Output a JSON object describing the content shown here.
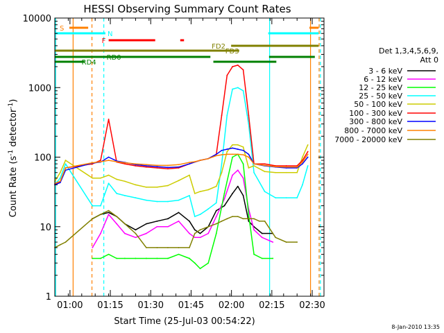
{
  "chart_data": {
    "type": "line",
    "title": "HESSI Observing Summary Count Rates",
    "xlabel": "Start Time (25-Jul-03 00:54:22)",
    "ylabel_main": "Count Rate (s",
    "ylabel_sup1": "-1",
    "ylabel_mid": " detector",
    "ylabel_sup2": "-1",
    "ylabel_end": ")",
    "x_unit": "minutes after 00:54:22",
    "xlim": [
      0,
      100
    ],
    "ylim": [
      1,
      10000
    ],
    "yscale": "log",
    "xticks": [
      {
        "value": 5.63,
        "label": "01:00"
      },
      {
        "value": 20.63,
        "label": "01:15"
      },
      {
        "value": 35.63,
        "label": "01:30"
      },
      {
        "value": 50.63,
        "label": "01:45"
      },
      {
        "value": 65.63,
        "label": "02:00"
      },
      {
        "value": 80.63,
        "label": "02:15"
      },
      {
        "value": 95.63,
        "label": "02:30"
      }
    ],
    "yticks": [
      {
        "value": 1,
        "label": "1"
      },
      {
        "value": 10,
        "label": "10"
      },
      {
        "value": 100,
        "label": "100"
      },
      {
        "value": 1000,
        "label": "1000"
      },
      {
        "value": 10000,
        "label": "10000"
      }
    ],
    "legend": {
      "placement": "right",
      "title_lines": [
        "Det 1,3,4,5,6,9,",
        "Att 0"
      ]
    },
    "series": [
      {
        "name": "3 - 6 keV",
        "color": "#000000",
        "x": [
          14,
          17,
          20,
          23,
          26,
          30,
          34,
          38,
          42,
          46,
          50,
          52,
          54,
          57,
          60,
          63,
          66,
          68,
          70,
          72,
          74,
          77,
          81
        ],
        "y": [
          13,
          15,
          16,
          14,
          11,
          9,
          11,
          12,
          13,
          16,
          12,
          9,
          8,
          10,
          17,
          20,
          30,
          38,
          28,
          12,
          10,
          8,
          8
        ]
      },
      {
        "name": "6 - 12 keV",
        "color": "#ff00ff",
        "x": [
          14,
          17,
          20,
          23,
          26,
          30,
          34,
          38,
          42,
          46,
          50,
          52,
          54,
          57,
          60,
          63,
          66,
          68,
          70,
          72,
          74,
          77,
          81
        ],
        "y": [
          5,
          8,
          15,
          11,
          8,
          7,
          8,
          10,
          10,
          12,
          8,
          7,
          7,
          8,
          14,
          25,
          55,
          65,
          50,
          18,
          9,
          7,
          6
        ]
      },
      {
        "name": "12 - 25 keV",
        "color": "#00ff00",
        "x": [
          14,
          17,
          20,
          23,
          26,
          30,
          34,
          38,
          42,
          46,
          50,
          52,
          54,
          57,
          60,
          63,
          66,
          68,
          70,
          72,
          74,
          77,
          81
        ],
        "y": [
          3.5,
          3.5,
          4,
          3.5,
          3.5,
          3.5,
          3.5,
          3.5,
          3.5,
          4,
          3.5,
          3,
          2.5,
          3,
          8,
          30,
          100,
          110,
          80,
          15,
          4,
          3.5,
          3.5
        ]
      },
      {
        "name": "25 - 50 keV",
        "color": "#00ffff",
        "x": [
          0,
          2,
          4,
          14,
          17,
          20,
          23,
          26,
          30,
          34,
          38,
          42,
          46,
          50,
          52,
          54,
          57,
          60,
          62,
          64,
          66,
          68,
          70,
          72,
          74,
          78,
          82,
          86,
          90,
          92,
          94
        ],
        "y": [
          40,
          50,
          80,
          20,
          20,
          42,
          30,
          28,
          26,
          24,
          23,
          23,
          24,
          28,
          14,
          15,
          18,
          22,
          80,
          400,
          950,
          1000,
          900,
          300,
          60,
          32,
          26,
          26,
          26,
          40,
          75
        ]
      },
      {
        "name": "50 - 100 keV",
        "color": "#cccc00",
        "x": [
          0,
          2,
          4,
          14,
          17,
          20,
          23,
          26,
          30,
          34,
          38,
          42,
          46,
          50,
          52,
          54,
          57,
          60,
          62,
          64,
          66,
          68,
          70,
          72,
          74,
          78,
          82,
          86,
          90,
          92,
          94
        ],
        "y": [
          45,
          60,
          90,
          50,
          50,
          55,
          48,
          45,
          40,
          37,
          37,
          39,
          46,
          55,
          30,
          32,
          34,
          38,
          60,
          120,
          150,
          150,
          140,
          70,
          75,
          62,
          60,
          60,
          60,
          100,
          150
        ]
      },
      {
        "name": "100 - 300 keV",
        "color": "#ff0000",
        "x": [
          0,
          2,
          4,
          14,
          17,
          20,
          23,
          26,
          30,
          34,
          38,
          42,
          46,
          50,
          52,
          54,
          57,
          60,
          62,
          64,
          66,
          68,
          70,
          72,
          74,
          78,
          82,
          86,
          90,
          92,
          94
        ],
        "y": [
          40,
          45,
          70,
          80,
          90,
          350,
          85,
          80,
          75,
          72,
          70,
          68,
          70,
          80,
          85,
          90,
          95,
          110,
          400,
          1500,
          2000,
          2100,
          1800,
          400,
          80,
          80,
          75,
          75,
          75,
          90,
          120
        ]
      },
      {
        "name": "300 - 800 keV",
        "color": "#0000ff",
        "x": [
          0,
          2,
          4,
          14,
          17,
          20,
          23,
          26,
          30,
          34,
          38,
          42,
          46,
          50,
          52,
          54,
          57,
          60,
          62,
          64,
          66,
          68,
          70,
          72,
          74,
          78,
          82,
          86,
          90,
          92,
          94
        ],
        "y": [
          40,
          43,
          65,
          82,
          85,
          100,
          88,
          84,
          78,
          75,
          73,
          71,
          72,
          80,
          85,
          90,
          95,
          110,
          125,
          130,
          135,
          130,
          125,
          110,
          80,
          75,
          72,
          70,
          70,
          80,
          100
        ]
      },
      {
        "name": "800 - 7000 keV",
        "color": "#ff8000",
        "x": [
          0,
          2,
          4,
          14,
          17,
          20,
          23,
          26,
          30,
          34,
          38,
          42,
          46,
          50,
          52,
          54,
          57,
          60,
          62,
          64,
          66,
          68,
          70,
          72,
          74,
          78,
          82,
          86,
          90,
          92,
          94
        ],
        "y": [
          42,
          45,
          70,
          83,
          86,
          90,
          86,
          83,
          80,
          78,
          76,
          76,
          78,
          84,
          86,
          90,
          95,
          105,
          108,
          110,
          110,
          110,
          108,
          100,
          80,
          76,
          73,
          72,
          72,
          85,
          110
        ]
      },
      {
        "name": "7000 - 20000 keV",
        "color": "#808000",
        "x": [
          0,
          2,
          4,
          14,
          17,
          20,
          23,
          26,
          30,
          34,
          38,
          42,
          46,
          50,
          52,
          54,
          57,
          60,
          62,
          64,
          66,
          68,
          70,
          72,
          74,
          76,
          78,
          82,
          86,
          90
        ],
        "y": [
          5,
          5.5,
          6,
          13,
          15,
          17,
          14,
          11,
          8,
          5,
          5,
          5,
          5,
          5,
          8,
          9,
          10,
          11,
          12,
          13,
          14,
          14,
          13,
          13,
          13,
          12,
          12,
          7,
          6,
          6
        ]
      }
    ],
    "flag_bars": [
      {
        "label": "S",
        "color": "#ff8000",
        "segments": [
          [
            5.4,
            12.4
          ],
          [
            94.6,
            98
          ]
        ]
      },
      {
        "label": "N",
        "color": "#00ffff",
        "segments": [
          [
            0,
            18.8
          ],
          [
            79.3,
            98
          ]
        ]
      },
      {
        "label": "F",
        "color": "#ff0000",
        "segments": [
          [
            20.0,
            37.3
          ],
          [
            46.6,
            48.0
          ]
        ]
      },
      {
        "label": "FD2",
        "color": "#808000",
        "segments": [
          [
            65.5,
            98
          ]
        ]
      },
      {
        "label": "FD3",
        "color": "#808000",
        "segments": [
          [
            0,
            68.5
          ]
        ]
      },
      {
        "label": "RD0",
        "color": "#008000",
        "segments": [
          [
            0,
            34.7
          ],
          [
            33.9,
            57.8
          ],
          [
            79.6,
            96.6
          ]
        ]
      },
      {
        "label": "RD4",
        "color": "#008000",
        "segments": [
          [
            0,
            11.0
          ],
          [
            58.9,
            82.3
          ]
        ]
      }
    ],
    "vlines": [
      {
        "x": 0.3,
        "color": "#00ffff",
        "style": "solid"
      },
      {
        "x": 6.8,
        "color": "#ff8000",
        "style": "solid"
      },
      {
        "x": 13.8,
        "color": "#ff8000",
        "style": "dashed"
      },
      {
        "x": 18.2,
        "color": "#00ffff",
        "style": "dashed"
      },
      {
        "x": 79.8,
        "color": "#00ffff",
        "style": "solid"
      },
      {
        "x": 95.0,
        "color": "#ff8000",
        "style": "solid"
      },
      {
        "x": 98.2,
        "color": "#ff8000",
        "style": "dashed"
      },
      {
        "x": 98.7,
        "color": "#00ffff",
        "style": "dashed"
      }
    ],
    "footer_stamp": "8-Jan-2010 13:35"
  }
}
